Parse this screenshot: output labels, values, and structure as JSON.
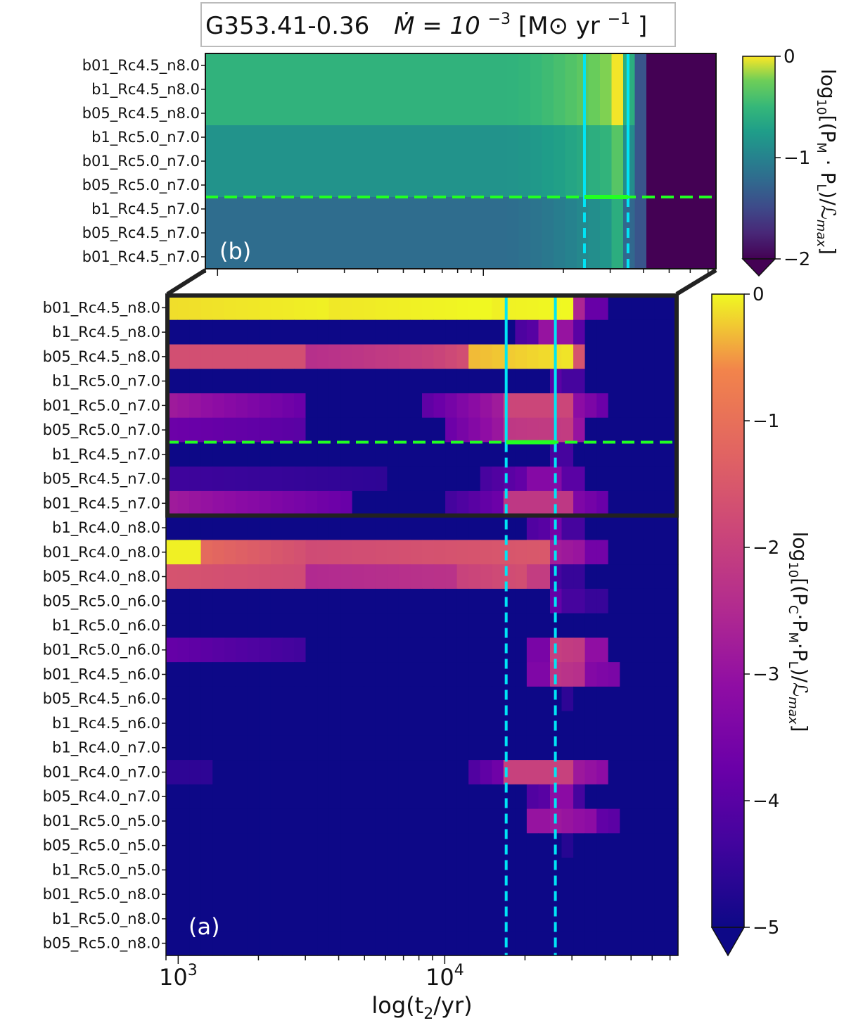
{
  "title": "G353.41-0.36",
  "title_rate_prefix": "Ṁ = 10",
  "title_rate_exp": "−3",
  "title_units": " [M⊙ yr",
  "title_units_exp": "−1",
  "title_units_close": "]",
  "colors": {
    "top_cyan": "#00e5f5",
    "threshold_green": "#22ff22",
    "frame": "#222222"
  },
  "chart_data": [
    {
      "panel": "b",
      "panel_label": "(b)",
      "type": "heatmap",
      "colormap": "viridis",
      "x_scale": "log",
      "xlim": [
        900,
        75000
      ],
      "rows": [
        "b01_Rc4.5_n8.0",
        "b1_Rc4.5_n8.0",
        "b05_Rc4.5_n8.0",
        "b1_Rc5.0_n7.0",
        "b01_Rc5.0_n7.0",
        "b05_Rc5.0_n7.0",
        "b1_Rc4.5_n7.0",
        "b05_Rc4.5_n7.0",
        "b01_Rc4.5_n7.0"
      ],
      "row_groups": [
        {
          "rows": [
            0,
            1,
            2
          ],
          "base": -0.55,
          "peak": -0.02
        },
        {
          "rows": [
            3,
            4,
            5
          ],
          "base": -0.85,
          "peak": -0.35
        },
        {
          "rows": [
            6,
            7,
            8
          ],
          "base": -1.2,
          "peak": -0.6
        }
      ],
      "support_end": 40000,
      "colorbar": {
        "label": "log₁₀[(P_M · P_L)/ℒ_max]",
        "label_main": "log",
        "label_sub": "10",
        "label_rest": "[(P",
        "label_m": "M",
        "label_dot": " · P",
        "label_l": "L",
        "label_tail": ")/ℒ",
        "label_max": "max",
        "label_end": "]",
        "ticks": [
          0,
          -1,
          -2
        ],
        "tick_labels": [
          "0",
          "−1",
          "−2"
        ],
        "range": [
          -2,
          0
        ]
      },
      "vertical_lines": [
        24000,
        35000
      ],
      "threshold_row_boundary": 6
    },
    {
      "panel": "a",
      "panel_label": "(a)",
      "type": "heatmap",
      "colormap": "plasma",
      "x_scale": "log",
      "xlim": [
        900,
        75000
      ],
      "xlabel": "log(t₂/yr)",
      "xlabel_main": "log(t",
      "xlabel_sub": "2",
      "xlabel_end": "/yr)",
      "x_ticks": [
        1000,
        10000
      ],
      "x_tick_base": [
        "10",
        "10"
      ],
      "x_tick_exp": [
        "3",
        "4"
      ],
      "rows": [
        "b01_Rc4.5_n8.0",
        "b1_Rc4.5_n8.0",
        "b05_Rc4.5_n8.0",
        "b1_Rc5.0_n7.0",
        "b01_Rc5.0_n7.0",
        "b05_Rc5.0_n7.0",
        "b1_Rc4.5_n7.0",
        "b05_Rc4.5_n7.0",
        "b01_Rc4.5_n7.0",
        "b1_Rc4.0_n8.0",
        "b01_Rc4.0_n8.0",
        "b05_Rc4.0_n8.0",
        "b05_Rc5.0_n6.0",
        "b1_Rc5.0_n6.0",
        "b01_Rc5.0_n6.0",
        "b01_Rc4.5_n6.0",
        "b05_Rc4.5_n6.0",
        "b1_Rc4.5_n6.0",
        "b1_Rc4.0_n7.0",
        "b01_Rc4.0_n7.0",
        "b05_Rc4.0_n7.0",
        "b01_Rc5.0_n5.0",
        "b05_Rc5.0_n5.0",
        "b1_Rc5.0_n5.0",
        "b01_Rc5.0_n8.0",
        "b1_Rc5.0_n8.0",
        "b05_Rc5.0_n8.0"
      ],
      "row_segments": [
        [
          [
            900,
            3500,
            -0.15,
            -0.05
          ],
          [
            3500,
            15000,
            -0.1,
            0.0
          ],
          [
            15000,
            30000,
            -0.05,
            0.0
          ],
          [
            30000,
            34000,
            -2.6,
            -2.6
          ],
          [
            34000,
            40000,
            -3.8,
            -3.8
          ]
        ],
        [
          [
            18000,
            22000,
            -4.3,
            -4.0
          ],
          [
            22000,
            30000,
            -3.0,
            -3.0
          ],
          [
            30000,
            35000,
            -4.0,
            -4.0
          ]
        ],
        [
          [
            900,
            3000,
            -1.7,
            -1.7
          ],
          [
            3000,
            9000,
            -2.4,
            -2.0
          ],
          [
            9000,
            12000,
            -2.0,
            -1.7
          ],
          [
            12000,
            30000,
            -0.35,
            -0.1
          ],
          [
            30000,
            35000,
            -1.6,
            -1.6
          ]
        ],
        [
          [
            24000,
            28000,
            -4.2,
            -3.8
          ],
          [
            28000,
            35000,
            -4.3,
            -4.3
          ]
        ],
        [
          [
            900,
            3100,
            -2.8,
            -3.8
          ],
          [
            8200,
            17000,
            -4.0,
            -2.7
          ],
          [
            17000,
            30000,
            -1.9,
            -1.9
          ],
          [
            30000,
            40000,
            -3.0,
            -3.8
          ]
        ],
        [
          [
            900,
            3000,
            -3.7,
            -4.0
          ],
          [
            10000,
            17000,
            -3.8,
            -2.8
          ],
          [
            17000,
            30000,
            -2.2,
            -2.1
          ],
          [
            30000,
            34000,
            -3.0,
            -3.0
          ]
        ],
        [
          [
            24000,
            30000,
            -4.3,
            -4.3
          ]
        ],
        [
          [
            900,
            6000,
            -4.4,
            -4.6
          ],
          [
            14000,
            20000,
            -4.3,
            -3.8
          ],
          [
            20000,
            28000,
            -3.3,
            -3.3
          ],
          [
            28000,
            34000,
            -4.0,
            -4.0
          ]
        ],
        [
          [
            900,
            4500,
            -2.8,
            -3.8
          ],
          [
            10000,
            17000,
            -4.4,
            -3.6
          ],
          [
            17000,
            30000,
            -2.2,
            -2.2
          ],
          [
            30000,
            40000,
            -3.3,
            -3.8
          ]
        ],
        [
          [
            20000,
            24000,
            -4.2,
            -4.0
          ],
          [
            24000,
            28000,
            -3.6,
            -3.6
          ],
          [
            28000,
            32000,
            -4.3,
            -4.3
          ]
        ],
        [
          [
            900,
            1200,
            -0.05,
            -0.05
          ],
          [
            1200,
            3000,
            -1.1,
            -1.7
          ],
          [
            3000,
            24000,
            -1.8,
            -1.5
          ],
          [
            24000,
            34000,
            -2.7,
            -3.0
          ],
          [
            34000,
            40000,
            -3.6,
            -3.6
          ]
        ],
        [
          [
            900,
            3000,
            -1.6,
            -1.8
          ],
          [
            3000,
            11000,
            -2.5,
            -2.3
          ],
          [
            11000,
            20000,
            -2.0,
            -1.7
          ],
          [
            20000,
            24000,
            -2.1,
            -2.1
          ],
          [
            24000,
            28000,
            -4.3,
            -4.3
          ],
          [
            28000,
            32000,
            -4.5,
            -4.5
          ]
        ],
        [
          [
            24000,
            28000,
            -4.0,
            -3.7
          ],
          [
            28000,
            34000,
            -4.3,
            -4.3
          ],
          [
            34000,
            40000,
            -4.5,
            -4.5
          ]
        ],
        [],
        [
          [
            900,
            3100,
            -3.8,
            -4.4
          ],
          [
            20000,
            24000,
            -3.5,
            -3.5
          ],
          [
            24000,
            34000,
            -2.0,
            -2.2
          ],
          [
            34000,
            40000,
            -3.1,
            -3.1
          ]
        ],
        [
          [
            20000,
            24000,
            -3.4,
            -3.4
          ],
          [
            24000,
            34000,
            -2.2,
            -2.4
          ],
          [
            34000,
            44000,
            -3.3,
            -3.5
          ]
        ],
        [
          [
            28000,
            30000,
            -4.6,
            -4.6
          ]
        ],
        [],
        [],
        [
          [
            900,
            1300,
            -4.6,
            -4.6
          ],
          [
            12000,
            17000,
            -4.3,
            -3.5
          ],
          [
            17000,
            30000,
            -2.0,
            -2.0
          ],
          [
            30000,
            40000,
            -2.8,
            -3.2
          ]
        ],
        [
          [
            20000,
            24000,
            -4.2,
            -4.0
          ],
          [
            24000,
            30000,
            -3.2,
            -3.2
          ],
          [
            30000,
            33000,
            -4.3,
            -4.3
          ]
        ],
        [
          [
            20000,
            24000,
            -3.0,
            -3.0
          ],
          [
            24000,
            36000,
            -2.8,
            -3.2
          ],
          [
            36000,
            44000,
            -3.8,
            -4.0
          ]
        ],
        [
          [
            28000,
            30000,
            -4.7,
            -4.7
          ]
        ],
        [],
        [],
        [],
        []
      ],
      "colorbar": {
        "label": "log₁₀[(P_C · P_M · P_L)/ℒ_max]",
        "label_main": "log",
        "label_sub": "10",
        "label_rest": "[(P",
        "label_c": "C",
        "label_dot1": "·P",
        "label_m": "M",
        "label_dot2": "·P",
        "label_l": "L",
        "label_tail": ")/ℒ",
        "label_max": "max",
        "label_end": "]",
        "ticks": [
          0,
          -1,
          -2,
          -3,
          -4,
          -5
        ],
        "tick_labels": [
          "0",
          "−1",
          "−2",
          "−3",
          "−4",
          "−5"
        ],
        "range": [
          -5,
          0
        ]
      },
      "vertical_lines": [
        17000,
        26000
      ],
      "threshold_row_boundary": 6,
      "zoom_box_rows": [
        0,
        8
      ]
    }
  ]
}
